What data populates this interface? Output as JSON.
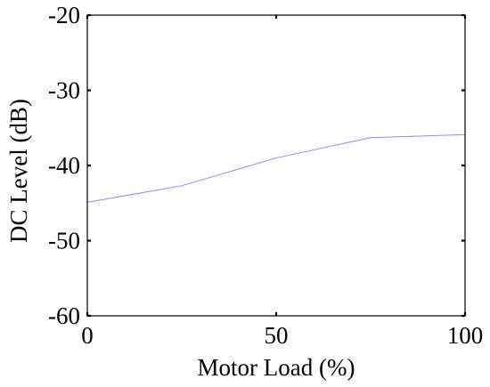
{
  "chart_data": {
    "type": "line",
    "title": "",
    "xlabel": "Motor Load (%)",
    "ylabel": "DC Level (dB)",
    "xlim": [
      0,
      100
    ],
    "ylim": [
      -60,
      -20
    ],
    "xticks": [
      0,
      50,
      100
    ],
    "yticks": [
      -20,
      -30,
      -40,
      -50,
      -60
    ],
    "xtick_labels": [
      "0",
      "50",
      "100"
    ],
    "ytick_labels": [
      "-20",
      "-30",
      "-40",
      "-50",
      "-60"
    ],
    "grid": false,
    "series": [
      {
        "x": [
          0,
          25,
          50,
          75,
          100
        ],
        "y": [
          -44.9,
          -42.7,
          -39.0,
          -36.3,
          -35.9
        ],
        "color": "#8a8aff"
      }
    ],
    "axis_color": "#000000"
  }
}
